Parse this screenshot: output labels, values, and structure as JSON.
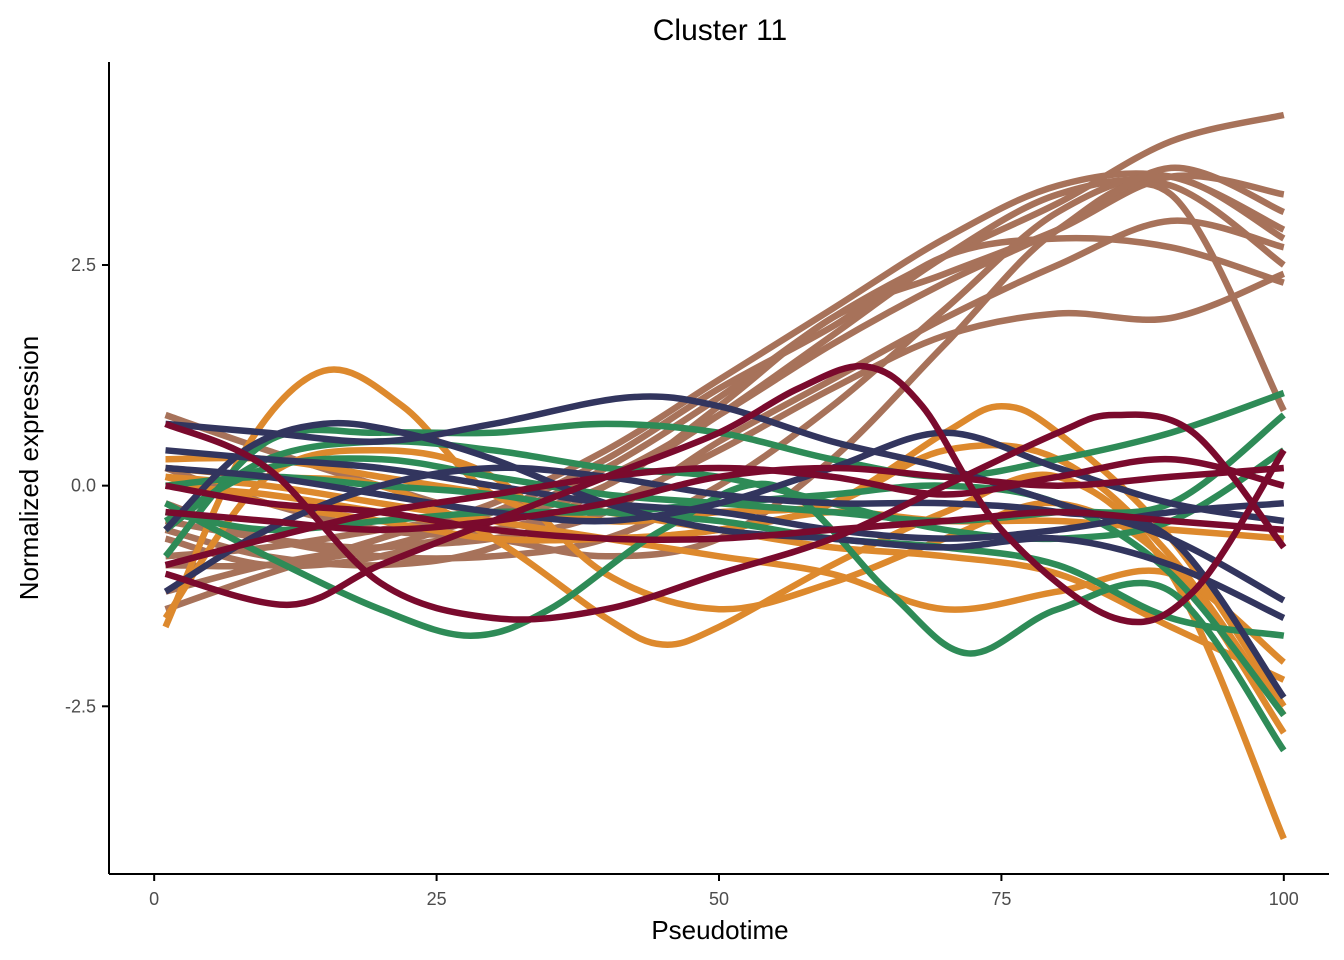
{
  "chart_data": {
    "type": "line",
    "title": "Cluster 11",
    "xlabel": "Pseudotime",
    "ylabel": "Normalized expression",
    "xlim": [
      -4,
      104
    ],
    "ylim": [
      -4.4,
      4.8
    ],
    "xticks": [
      0,
      25,
      50,
      75,
      100
    ],
    "xtick_labels": [
      "0",
      "25",
      "50",
      "75",
      "100"
    ],
    "yticks": [
      -2.5,
      0.0,
      2.5
    ],
    "ytick_labels": [
      "-2.5",
      "0.0",
      "2.5"
    ],
    "grid": false,
    "legend": "none",
    "colors": {
      "group1": "#7a0a2d",
      "group2": "#32355e",
      "group3": "#2e8b57",
      "group4": "#dd892d",
      "group5": "#a7725a"
    },
    "series": [
      {
        "group": "group5",
        "x": [
          1,
          10,
          20,
          30,
          40,
          50,
          60,
          70,
          80,
          90,
          100
        ],
        "y": [
          -0.6,
          -0.9,
          -0.8,
          -0.4,
          0.2,
          1.0,
          1.9,
          2.6,
          3.2,
          3.9,
          4.2
        ]
      },
      {
        "group": "group5",
        "x": [
          1,
          10,
          20,
          30,
          40,
          50,
          60,
          70,
          80,
          90,
          100
        ],
        "y": [
          -1.4,
          -1.0,
          -0.6,
          -0.2,
          0.4,
          1.2,
          2.0,
          2.8,
          3.4,
          3.5,
          2.9
        ]
      },
      {
        "group": "group5",
        "x": [
          1,
          10,
          20,
          30,
          40,
          50,
          60,
          70,
          80,
          90,
          100
        ],
        "y": [
          -0.5,
          -0.8,
          -0.9,
          -0.7,
          0.0,
          0.8,
          1.7,
          2.6,
          3.3,
          3.4,
          2.5
        ]
      },
      {
        "group": "group5",
        "x": [
          1,
          10,
          20,
          30,
          40,
          50,
          60,
          70,
          80,
          90,
          100
        ],
        "y": [
          0.8,
          0.4,
          0.0,
          -0.3,
          0.0,
          0.9,
          1.9,
          2.4,
          2.9,
          3.5,
          3.3
        ]
      },
      {
        "group": "group5",
        "x": [
          1,
          10,
          20,
          30,
          40,
          50,
          60,
          70,
          80,
          90,
          100
        ],
        "y": [
          -1.2,
          -0.9,
          -0.7,
          -0.6,
          -0.3,
          0.5,
          1.2,
          1.9,
          2.5,
          3.0,
          2.7
        ]
      },
      {
        "group": "group5",
        "x": [
          1,
          10,
          20,
          30,
          40,
          50,
          60,
          70,
          80,
          90,
          100
        ],
        "y": [
          -0.9,
          -0.9,
          -0.7,
          -0.3,
          0.3,
          1.1,
          1.8,
          2.6,
          2.8,
          2.7,
          2.3
        ]
      },
      {
        "group": "group5",
        "x": [
          1,
          10,
          20,
          30,
          40,
          50,
          60,
          70,
          80,
          90,
          100
        ],
        "y": [
          -0.2,
          -0.6,
          -0.8,
          -0.8,
          -0.6,
          0.0,
          0.9,
          2.0,
          3.1,
          3.5,
          2.8
        ]
      },
      {
        "group": "group5",
        "x": [
          1,
          10,
          20,
          30,
          40,
          50,
          60,
          70,
          80,
          90,
          100
        ],
        "y": [
          0.2,
          -0.2,
          -0.5,
          -0.6,
          -0.8,
          -0.6,
          0.3,
          1.6,
          2.9,
          3.3,
          0.85
        ]
      },
      {
        "group": "group5",
        "x": [
          1,
          10,
          20,
          30,
          40,
          50,
          60,
          70,
          80,
          90,
          100
        ],
        "y": [
          -0.4,
          -0.6,
          -0.7,
          -0.5,
          -0.2,
          0.4,
          1.1,
          1.7,
          1.95,
          1.9,
          2.4
        ]
      },
      {
        "group": "group5",
        "x": [
          1,
          10,
          20,
          30,
          40,
          50,
          60,
          70,
          80,
          90,
          100
        ],
        "y": [
          -0.8,
          -0.7,
          -0.5,
          -0.3,
          0.1,
          0.8,
          1.6,
          2.3,
          2.9,
          3.6,
          3.1
        ]
      },
      {
        "group": "group4",
        "x": [
          1,
          8,
          15,
          22,
          30,
          40,
          50,
          60,
          70,
          80,
          90,
          100
        ],
        "y": [
          -1.6,
          0.4,
          1.3,
          0.9,
          -0.1,
          -0.4,
          -0.3,
          -0.2,
          0.4,
          0.3,
          -0.8,
          -2.6
        ]
      },
      {
        "group": "group4",
        "x": [
          1,
          10,
          20,
          30,
          40,
          45,
          50,
          60,
          70,
          80,
          90,
          100
        ],
        "y": [
          0.2,
          0.1,
          0.0,
          -0.6,
          -1.5,
          -1.8,
          -1.6,
          -0.9,
          -0.3,
          0.1,
          -1.0,
          -4.0
        ]
      },
      {
        "group": "group4",
        "x": [
          1,
          10,
          20,
          30,
          40,
          50,
          60,
          70,
          80,
          90,
          100
        ],
        "y": [
          -1.5,
          0.1,
          0.4,
          0.1,
          -1.0,
          -1.4,
          -1.1,
          -0.6,
          -0.2,
          -0.9,
          -2.8
        ]
      },
      {
        "group": "group4",
        "x": [
          1,
          10,
          20,
          30,
          40,
          50,
          60,
          70,
          75,
          80,
          90,
          100
        ],
        "y": [
          0.1,
          -0.2,
          -0.4,
          -0.6,
          -0.6,
          -0.5,
          -0.2,
          0.6,
          0.9,
          0.6,
          -0.6,
          -2.5
        ]
      },
      {
        "group": "group4",
        "x": [
          1,
          10,
          20,
          30,
          40,
          50,
          60,
          70,
          80,
          90,
          100
        ],
        "y": [
          0.3,
          0.3,
          0.1,
          -0.1,
          -0.3,
          -0.5,
          -0.7,
          -0.8,
          -1.0,
          -1.6,
          -2.2
        ]
      },
      {
        "group": "group4",
        "x": [
          1,
          10,
          20,
          30,
          40,
          50,
          60,
          70,
          80,
          90,
          100
        ],
        "y": [
          0.0,
          -0.1,
          -0.3,
          -0.5,
          -0.6,
          -0.5,
          -0.3,
          -0.4,
          -0.4,
          -0.5,
          -0.6
        ]
      },
      {
        "group": "group4",
        "x": [
          1,
          10,
          20,
          30,
          40,
          50,
          60,
          70,
          80,
          90,
          100
        ],
        "y": [
          0.1,
          0.0,
          -0.2,
          -0.4,
          -0.6,
          -0.8,
          -1.0,
          -1.4,
          -1.2,
          -1.0,
          -2.0
        ]
      },
      {
        "group": "group3",
        "x": [
          1,
          10,
          20,
          28,
          35,
          45,
          55,
          65,
          72,
          80,
          90,
          100
        ],
        "y": [
          -0.2,
          -0.8,
          -1.4,
          -1.7,
          -1.4,
          -0.5,
          0.0,
          -1.2,
          -1.9,
          -1.4,
          -1.2,
          -3.0
        ]
      },
      {
        "group": "group3",
        "x": [
          1,
          10,
          20,
          30,
          40,
          50,
          60,
          70,
          80,
          90,
          100
        ],
        "y": [
          -0.8,
          0.5,
          0.6,
          0.6,
          0.7,
          0.6,
          0.3,
          0.1,
          0.3,
          0.6,
          1.05
        ]
      },
      {
        "group": "group3",
        "x": [
          1,
          10,
          20,
          30,
          40,
          50,
          60,
          70,
          80,
          90,
          100
        ],
        "y": [
          -0.5,
          0.3,
          0.5,
          0.4,
          0.2,
          0.1,
          -0.2,
          -0.5,
          -0.6,
          -0.4,
          0.4
        ]
      },
      {
        "group": "group3",
        "x": [
          1,
          10,
          20,
          30,
          40,
          50,
          60,
          70,
          80,
          90,
          100
        ],
        "y": [
          0.0,
          0.1,
          0.0,
          -0.1,
          -0.3,
          -0.4,
          -0.6,
          -0.7,
          -0.9,
          -1.5,
          -1.7
        ]
      },
      {
        "group": "group3",
        "x": [
          1,
          10,
          20,
          30,
          40,
          50,
          60,
          70,
          80,
          90,
          100
        ],
        "y": [
          -0.3,
          -0.5,
          -0.4,
          -0.3,
          -0.3,
          -0.2,
          -0.1,
          0.0,
          -0.2,
          -1.0,
          -2.6
        ]
      },
      {
        "group": "group3",
        "x": [
          1,
          10,
          20,
          30,
          40,
          50,
          60,
          70,
          80,
          90,
          100
        ],
        "y": [
          -0.4,
          0.2,
          0.3,
          0.1,
          -0.1,
          -0.2,
          -0.3,
          -0.4,
          -0.3,
          -0.2,
          0.8
        ]
      },
      {
        "group": "group2",
        "x": [
          1,
          10,
          20,
          30,
          42,
          50,
          60,
          70,
          80,
          90,
          100
        ],
        "y": [
          0.7,
          0.6,
          0.5,
          0.7,
          1.0,
          0.9,
          0.5,
          0.2,
          -0.2,
          -0.6,
          -1.3
        ]
      },
      {
        "group": "group2",
        "x": [
          1,
          8,
          15,
          22,
          30,
          40,
          50,
          60,
          70,
          80,
          90,
          100
        ],
        "y": [
          -0.5,
          0.4,
          0.7,
          0.6,
          0.3,
          -0.2,
          -0.5,
          -0.6,
          -0.7,
          -0.6,
          -0.9,
          -1.5
        ]
      },
      {
        "group": "group2",
        "x": [
          1,
          10,
          20,
          30,
          40,
          50,
          60,
          70,
          80,
          90,
          100
        ],
        "y": [
          0.4,
          0.3,
          0.2,
          0.0,
          -0.2,
          -0.3,
          -0.5,
          -0.6,
          -0.5,
          -0.3,
          -0.2
        ]
      },
      {
        "group": "group2",
        "x": [
          1,
          10,
          20,
          30,
          40,
          50,
          60,
          70,
          80,
          90,
          100
        ],
        "y": [
          -1.2,
          -0.5,
          0.0,
          0.2,
          0.1,
          -0.1,
          -0.2,
          -0.2,
          -0.3,
          -0.6,
          -2.4
        ]
      },
      {
        "group": "group2",
        "x": [
          1,
          10,
          20,
          30,
          40,
          50,
          60,
          70,
          80,
          90,
          100
        ],
        "y": [
          0.2,
          0.1,
          -0.1,
          -0.3,
          -0.4,
          -0.2,
          0.2,
          0.6,
          0.2,
          -0.2,
          -0.4
        ]
      },
      {
        "group": "group1",
        "x": [
          1,
          12,
          20,
          30,
          40,
          50,
          57,
          63,
          68,
          75,
          85,
          92,
          100
        ],
        "y": [
          -1.0,
          -1.35,
          -0.9,
          -0.4,
          0.1,
          0.6,
          1.1,
          1.35,
          0.9,
          -0.5,
          -1.5,
          -1.2,
          0.4
        ]
      },
      {
        "group": "group1",
        "x": [
          1,
          10,
          20,
          30,
          40,
          50,
          60,
          70,
          80,
          85,
          92,
          100
        ],
        "y": [
          0.7,
          0.2,
          -1.1,
          -1.5,
          -1.4,
          -1.0,
          -0.6,
          0.0,
          0.6,
          0.8,
          0.6,
          -0.7
        ]
      },
      {
        "group": "group1",
        "x": [
          1,
          10,
          20,
          30,
          40,
          50,
          60,
          70,
          80,
          90,
          100
        ],
        "y": [
          -0.3,
          -0.4,
          -0.5,
          -0.4,
          -0.2,
          0.1,
          0.2,
          0.1,
          0.0,
          0.1,
          0.2
        ]
      },
      {
        "group": "group1",
        "x": [
          1,
          10,
          20,
          30,
          40,
          50,
          60,
          70,
          80,
          90,
          100
        ],
        "y": [
          -0.9,
          -0.6,
          -0.3,
          -0.1,
          0.1,
          0.2,
          0.1,
          -0.1,
          0.1,
          0.3,
          0.0
        ]
      },
      {
        "group": "group1",
        "x": [
          1,
          10,
          20,
          30,
          40,
          50,
          60,
          70,
          80,
          90,
          100
        ],
        "y": [
          0.0,
          -0.2,
          -0.3,
          -0.5,
          -0.6,
          -0.6,
          -0.5,
          -0.4,
          -0.3,
          -0.4,
          -0.5
        ]
      }
    ]
  }
}
